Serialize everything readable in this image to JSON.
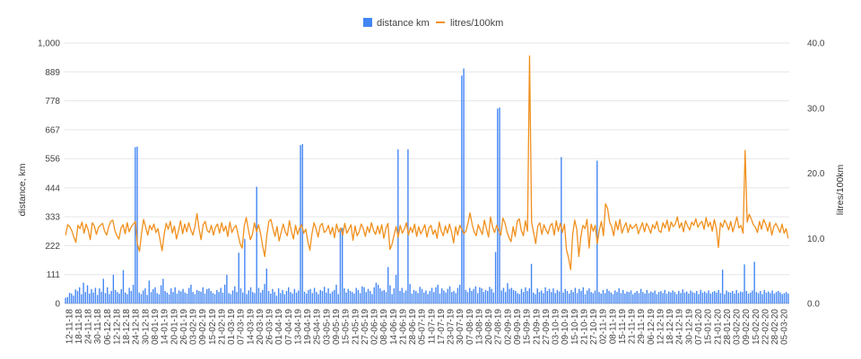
{
  "chart_data": {
    "type": "bar-line-combo",
    "legend_position": "top-center",
    "grid": true,
    "colors": {
      "distance": "#4285f4",
      "consumption": "#f0901e",
      "grid": "#e6e6e6",
      "text": "#444444"
    },
    "legend": [
      {
        "key": "distance",
        "label": "distance km"
      },
      {
        "key": "consumption",
        "label": "litres/100km"
      }
    ],
    "y_left": {
      "label": "distance, km",
      "min": 0,
      "max": 1000,
      "ticks": [
        {
          "value": 0,
          "label": "0"
        },
        {
          "value": 111,
          "label": "111"
        },
        {
          "value": 222,
          "label": "222"
        },
        {
          "value": 333,
          "label": "333"
        },
        {
          "value": 444,
          "label": "444"
        },
        {
          "value": 556,
          "label": "556"
        },
        {
          "value": 667,
          "label": "667"
        },
        {
          "value": 778,
          "label": "778"
        },
        {
          "value": 889,
          "label": "889"
        },
        {
          "value": 1000,
          "label": "1,000"
        }
      ]
    },
    "y_right": {
      "label": "litres/100km",
      "min": 0,
      "max": 40,
      "ticks": [
        {
          "value": 0,
          "label": "0.0"
        },
        {
          "value": 10,
          "label": "10.0"
        },
        {
          "value": 20,
          "label": "20.0"
        },
        {
          "value": 30,
          "label": "30.0"
        },
        {
          "value": 40,
          "label": "40.0"
        }
      ]
    },
    "x_tick_labels": [
      "12-11-18",
      "18-11-18",
      "24-11-18",
      "30-11-18",
      "06-12-18",
      "12-12-18",
      "18-12-18",
      "24-12-18",
      "30-12-18",
      "08-01-19",
      "14-01-19",
      "20-01-19",
      "26-01-19",
      "03-02-19",
      "09-02-19",
      "15-02-19",
      "21-02-19",
      "01-03-19",
      "07-03-19",
      "14-03-19",
      "20-03-19",
      "26-03-19",
      "01-04-19",
      "07-04-19",
      "13-04-19",
      "19-04-19",
      "25-04-19",
      "03-05-19",
      "09-05-19",
      "15-05-19",
      "21-05-19",
      "27-05-19",
      "02-06-19",
      "08-06-19",
      "14-06-19",
      "21-06-19",
      "28-06-19",
      "05-07-19",
      "11-07-19",
      "17-07-19",
      "23-07-19",
      "30-07-19",
      "07-08-19",
      "13-08-19",
      "20-08-19",
      "27-08-19",
      "02-09-19",
      "09-09-19",
      "15-09-19",
      "21-09-19",
      "27-09-19",
      "03-10-19",
      "09-10-19",
      "15-10-19",
      "21-10-19",
      "27-10-19",
      "02-11-19",
      "08-11-19",
      "15-11-19",
      "21-11-19",
      "29-11-19",
      "06-12-19",
      "12-12-19",
      "18-12-19",
      "24-12-19",
      "30-12-19",
      "07-01-20",
      "15-01-20",
      "21-01-20",
      "28-01-20",
      "03-02-20",
      "09-02-20",
      "15-02-20",
      "22-02-20",
      "28-02-20",
      "05-03-20"
    ],
    "series": [
      {
        "name": "distance km",
        "axis": "left",
        "kind": "bar",
        "values": [
          22,
          25,
          41,
          38,
          30,
          54,
          48,
          62,
          35,
          80,
          44,
          70,
          38,
          55,
          42,
          60,
          33,
          58,
          45,
          95,
          40,
          62,
          36,
          48,
          110,
          52,
          44,
          38,
          55,
          128,
          42,
          36,
          60,
          48,
          72,
          600,
          602,
          42,
          36,
          50,
          58,
          33,
          88,
          44,
          55,
          62,
          40,
          36,
          70,
          95,
          48,
          42,
          35,
          58,
          44,
          62,
          38,
          50,
          46,
          56,
          42,
          38,
          60,
          72,
          44,
          36,
          52,
          48,
          45,
          62,
          38,
          55,
          58,
          48,
          40,
          36,
          52,
          44,
          60,
          42,
          72,
          110,
          40,
          36,
          50,
          66,
          44,
          195,
          58,
          42,
          248,
          36,
          50,
          62,
          44,
          40,
          448,
          60,
          42,
          52,
          75,
          134,
          48,
          38,
          56,
          44,
          30,
          58,
          40,
          52,
          36,
          48,
          62,
          44,
          38,
          56,
          42,
          50,
          608,
          612,
          45,
          38,
          52,
          56,
          40,
          60,
          44,
          36,
          52,
          48,
          64,
          42,
          58,
          38,
          46,
          52,
          72,
          36,
          280,
          290,
          58,
          42,
          56,
          48,
          44,
          38,
          60,
          52,
          40,
          66,
          62,
          44,
          56,
          48,
          36,
          62,
          80,
          72,
          58,
          48,
          52,
          44,
          140,
          70,
          36,
          58,
          110,
          592,
          48,
          60,
          42,
          50,
          592,
          75,
          38,
          52,
          48,
          40,
          64,
          56,
          42,
          50,
          36,
          48,
          60,
          44,
          62,
          72,
          38,
          58,
          50,
          42,
          56,
          66,
          44,
          48,
          40,
          60,
          72,
          875,
          902,
          52,
          44,
          60,
          48,
          56,
          66,
          40,
          62,
          58,
          44,
          52,
          48,
          64,
          56,
          42,
          198,
          748,
          752,
          50,
          60,
          44,
          78,
          56,
          60,
          52,
          48,
          40,
          36,
          56,
          44,
          62,
          48,
          58,
          152,
          42,
          36,
          58,
          44,
          50,
          40,
          62,
          48,
          56,
          44,
          58,
          40,
          52,
          46,
          562,
          42,
          56,
          48,
          38,
          52,
          44,
          60,
          40,
          56,
          48,
          62,
          36,
          50,
          58,
          44,
          40,
          50,
          548,
          44,
          38,
          52,
          40,
          56,
          48,
          42,
          36,
          50,
          44,
          58,
          40,
          52,
          38,
          46,
          44,
          50,
          36,
          42,
          48,
          40,
          56,
          44,
          38,
          52,
          40,
          46,
          42,
          50,
          36,
          44,
          48,
          40,
          52,
          38,
          46,
          42,
          50,
          44,
          36,
          48,
          40,
          54,
          42,
          46,
          38,
          50,
          44,
          40,
          48,
          36,
          52,
          42,
          46,
          40,
          50,
          38,
          44,
          48,
          42,
          52,
          40,
          130,
          36,
          50,
          44,
          42,
          48,
          38,
          52,
          40,
          46,
          44,
          150,
          48,
          38,
          42,
          50,
          160,
          44,
          40,
          48,
          36,
          52,
          42,
          46,
          40,
          50,
          38,
          44,
          48,
          42,
          36,
          40,
          44,
          38
        ],
        "color": "#4285f4"
      },
      {
        "name": "litres/100km",
        "axis": "right",
        "kind": "line",
        "values": [
          10.5,
          12.1,
          11.8,
          11.2,
          10.2,
          9.4,
          12.0,
          11.5,
          12.5,
          10.8,
          12.2,
          11.3,
          9.8,
          12.4,
          11.9,
          10.6,
          11.7,
          12.0,
          12.3,
          11.1,
          10.5,
          11.8,
          12.6,
          12.8,
          11.2,
          10.4,
          9.9,
          11.6,
          12.1,
          10.7,
          12.4,
          11.0,
          11.8,
          12.2,
          12.6,
          9.1,
          8.0,
          10.8,
          12.9,
          11.7,
          10.5,
          12.0,
          11.3,
          12.2,
          10.9,
          11.5,
          9.8,
          8.1,
          10.6,
          12.3,
          11.4,
          12.6,
          10.8,
          11.9,
          9.9,
          11.2,
          12.7,
          10.7,
          12.2,
          11.0,
          12.4,
          11.3,
          10.5,
          11.8,
          13.8,
          11.5,
          9.8,
          12.1,
          12.6,
          11.2,
          10.9,
          12.0,
          10.5,
          11.7,
          12.2,
          10.8,
          12.4,
          11.1,
          11.9,
          10.3,
          12.5,
          10.9,
          11.6,
          12.0,
          10.6,
          9.2,
          8.5,
          11.8,
          13.2,
          11.4,
          9.8,
          10.6,
          12.4,
          11.0,
          12.1,
          10.7,
          8.8,
          7.2,
          10.4,
          12.6,
          12.9,
          11.5,
          10.3,
          11.8,
          9.6,
          10.9,
          12.2,
          11.0,
          10.4,
          12.7,
          11.1,
          9.9,
          12.0,
          10.6,
          11.6,
          12.1,
          10.8,
          11.4,
          9.5,
          8.2,
          10.7,
          12.4,
          11.5,
          10.2,
          11.9,
          12.3,
          10.9,
          11.2,
          12.0,
          10.6,
          11.7,
          10.1,
          12.2,
          11.0,
          11.6,
          10.5,
          12.3,
          10.8,
          11.4,
          12.1,
          9.7,
          11.9,
          10.4,
          11.0,
          12.2,
          11.5,
          10.3,
          11.8,
          10.9,
          12.4,
          11.2,
          10.6,
          11.9,
          10.7,
          12.1,
          10.0,
          11.5,
          12.3,
          8.3,
          9.1,
          10.5,
          11.8,
          10.2,
          12.0,
          10.8,
          11.4,
          12.4,
          10.5,
          11.7,
          10.9,
          12.2,
          10.3,
          11.8,
          10.7,
          11.3,
          12.1,
          10.2,
          11.6,
          12.0,
          10.6,
          11.3,
          10.0,
          12.5,
          11.1,
          10.4,
          11.9,
          10.8,
          12.2,
          11.0,
          9.3,
          11.8,
          10.5,
          12.0,
          11.4,
          10.7,
          11.1,
          12.3,
          13.9,
          12.2,
          11.0,
          10.4,
          12.1,
          11.3,
          10.6,
          12.8,
          11.5,
          10.2,
          13.3,
          11.7,
          10.9,
          12.0,
          11.2,
          10.5,
          13.1,
          12.4,
          11.0,
          10.1,
          9.5,
          11.8,
          10.3,
          12.6,
          13.0,
          11.2,
          10.4,
          12.7,
          11.1,
          38.0,
          12.5,
          10.8,
          9.2,
          11.9,
          12.4,
          10.6,
          12.1,
          11.3,
          10.7,
          11.9,
          12.3,
          10.5,
          12.7,
          11.1,
          12.3,
          10.9,
          12.2,
          8.2,
          7.0,
          5.2,
          10.6,
          12.8,
          11.4,
          7.2,
          10.3,
          12.0,
          11.5,
          12.9,
          8.5,
          12.2,
          11.1,
          12.0,
          9.2,
          11.3,
          12.6,
          10.4,
          15.3,
          14.6,
          12.5,
          11.8,
          10.4,
          12.6,
          11.3,
          12.9,
          10.8,
          11.7,
          12.4,
          10.9,
          12.1,
          11.5,
          11.8,
          12.2,
          10.7,
          11.6,
          12.4,
          11.0,
          12.3,
          11.7,
          10.8,
          12.1,
          11.5,
          12.6,
          11.2,
          10.9,
          12.4,
          11.6,
          12.8,
          11.1,
          12.5,
          11.8,
          12.2,
          13.3,
          11.6,
          12.4,
          11.0,
          12.7,
          11.9,
          11.3,
          12.5,
          12.0,
          13.0,
          11.7,
          12.3,
          12.6,
          11.4,
          13.2,
          11.8,
          12.5,
          11.1,
          12.9,
          11.5,
          8.6,
          12.4,
          11.7,
          12.8,
          12.2,
          11.3,
          12.6,
          11.0,
          12.1,
          13.3,
          11.6,
          12.0,
          10.8,
          23.5,
          12.5,
          13.7,
          13.0,
          12.1,
          11.7,
          10.9,
          12.6,
          11.4,
          12.9,
          12.2,
          11.1,
          12.5,
          10.5,
          11.8,
          12.3,
          11.6,
          10.9,
          12.2,
          10.8,
          11.5,
          10.0
        ],
        "color": "#f0901e"
      }
    ]
  }
}
